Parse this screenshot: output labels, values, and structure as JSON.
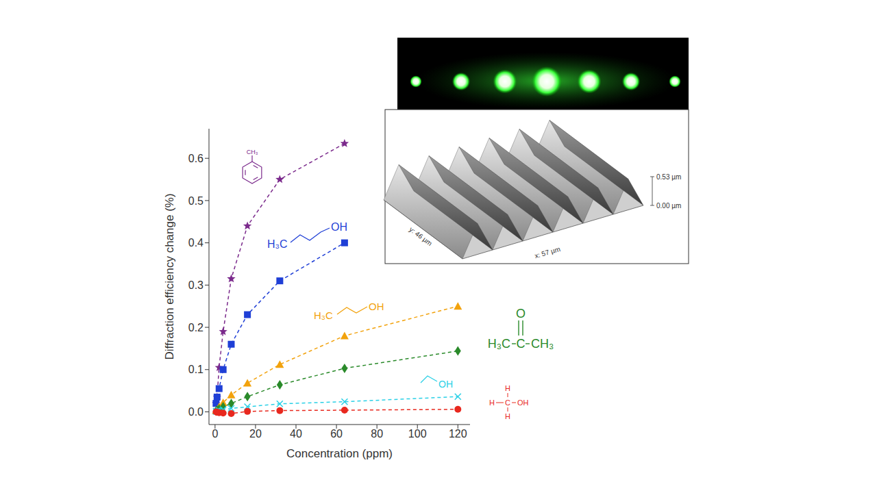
{
  "chart_data": {
    "type": "line",
    "x_label": "Concentration (ppm)",
    "y_label": "Diffraction efficiency change (%)",
    "x": [
      0.5,
      1,
      2,
      4,
      8,
      16,
      32,
      64,
      120
    ],
    "xlim": [
      -3,
      126
    ],
    "xticks": [
      0,
      20,
      40,
      60,
      80,
      100,
      120
    ],
    "ylim": [
      -0.03,
      0.67
    ],
    "yticks": [
      {
        "value": 0,
        "label": "0.0"
      },
      0.1,
      0.2,
      0.3,
      0.4,
      0.5,
      0.6
    ],
    "grid": false,
    "series": [
      {
        "label": [
          "CH₃"
        ],
        "color": "#7b2a8c",
        "marker": "star",
        "line_style": "dashed",
        "values": [
          0.02,
          0.035,
          0.105,
          0.19,
          0.315,
          0.44,
          0.55,
          0.635,
          null
        ]
      },
      {
        "label": [
          "H₃C",
          "OH"
        ],
        "color": "#1f3fd6",
        "marker": "square",
        "line_style": "dashed",
        "values": [
          0.02,
          0.035,
          0.055,
          0.1,
          0.16,
          0.23,
          0.31,
          0.4,
          null
        ]
      },
      {
        "label": [
          "H₃C",
          "OH"
        ],
        "color": "#f2a20c",
        "marker": "triangle",
        "line_style": "dashed",
        "values": [
          0.003,
          0.005,
          0.012,
          0.022,
          0.04,
          0.068,
          0.112,
          0.18,
          0.25
        ]
      },
      {
        "label": [
          "O",
          "H₃C",
          "C",
          "CH₃"
        ],
        "color": "#2a8a2a",
        "marker": "diamond",
        "line_style": "dashed",
        "values": [
          0.002,
          0.004,
          0.007,
          0.012,
          0.02,
          0.036,
          0.064,
          0.103,
          0.144
        ]
      },
      {
        "label": [
          "OH"
        ],
        "color": "#2ad0e6",
        "marker": "x",
        "line_style": "dashed",
        "values": [
          0.001,
          0.002,
          0.003,
          0.005,
          0.008,
          0.012,
          0.019,
          0.024,
          0.036
        ]
      },
      {
        "label": [
          "H",
          "H",
          "C",
          "OH",
          "H"
        ],
        "color": "#e8281e",
        "marker": "circle",
        "line_style": "dashed",
        "values": [
          0,
          -0.001,
          -0.002,
          -0.003,
          -0.004,
          0.001,
          0.003,
          0.004,
          0.006
        ]
      }
    ]
  },
  "inset": {
    "afm": {
      "x_label": "x: 57 µm",
      "y_label": "y: 46 µm",
      "z_labels": [
        "0.53 µm",
        "0.00 µm"
      ]
    }
  }
}
